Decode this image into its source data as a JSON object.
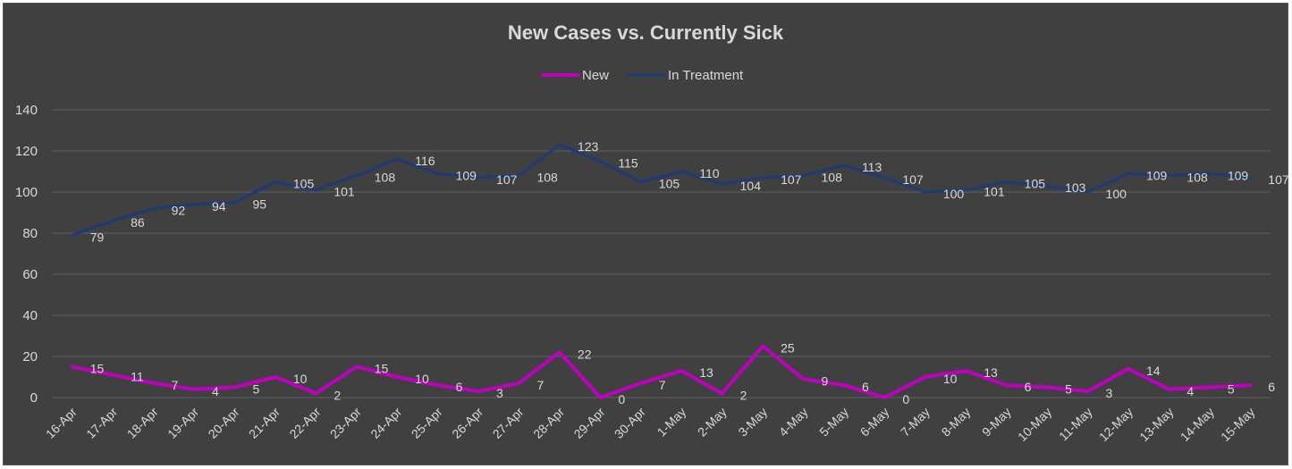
{
  "chart_data": {
    "type": "line",
    "title": "New Cases vs. Currently Sick",
    "legend_position": "top",
    "ylim": [
      0,
      140
    ],
    "yticks": [
      0,
      20,
      40,
      60,
      80,
      100,
      120,
      140
    ],
    "grid": true,
    "x": [
      "16-Apr",
      "17-Apr",
      "18-Apr",
      "19-Apr",
      "20-Apr",
      "21-Apr",
      "22-Apr",
      "23-Apr",
      "24-Apr",
      "25-Apr",
      "26-Apr",
      "27-Apr",
      "28-Apr",
      "29-Apr",
      "30-Apr",
      "1-May",
      "2-May",
      "3-May",
      "4-May",
      "5-May",
      "6-May",
      "7-May",
      "8-May",
      "9-May",
      "10-May",
      "11-May",
      "12-May",
      "13-May",
      "14-May",
      "15-May"
    ],
    "series": [
      {
        "name": "New",
        "color": "#c000c0",
        "values": [
          15,
          11,
          7,
          4,
          5,
          10,
          2,
          15,
          10,
          6,
          3,
          7,
          22,
          0,
          7,
          13,
          2,
          25,
          9,
          6,
          0,
          10,
          13,
          6,
          5,
          3,
          14,
          4,
          5,
          6
        ]
      },
      {
        "name": "In Treatment",
        "color": "#1f3a78",
        "values": [
          79,
          86,
          92,
          94,
          95,
          105,
          101,
          108,
          116,
          109,
          107,
          108,
          123,
          115,
          105,
          110,
          104,
          107,
          108,
          113,
          107,
          100,
          101,
          105,
          103,
          100,
          109,
          108,
          109,
          107
        ]
      }
    ]
  }
}
